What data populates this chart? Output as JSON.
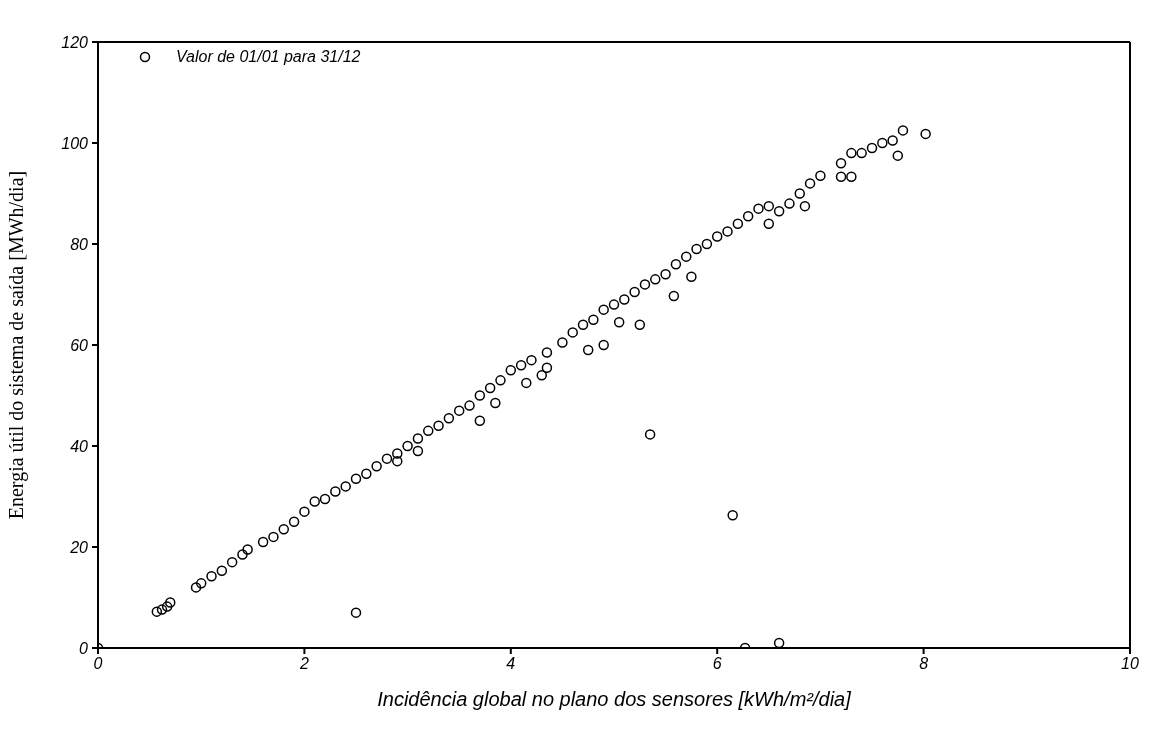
{
  "chart_data": {
    "type": "scatter",
    "xlabel": "Incidência global no plano dos sensores [kWh/m²/dia]",
    "ylabel": "Energia útil do sistema de saída [MWh/dia]",
    "xlim": [
      0,
      10
    ],
    "xticks": [
      0,
      2,
      4,
      6,
      8,
      10
    ],
    "ylim": [
      0,
      120
    ],
    "yticks": [
      0,
      20,
      40,
      60,
      80,
      100,
      120
    ],
    "grid": false,
    "legend": "top left",
    "marker": "circle",
    "series": [
      {
        "name": "Valor de 01/01 para 31/12",
        "color": "#000000",
        "x": [
          0,
          0.57,
          0.62,
          0.67,
          0.7,
          0.95,
          1.0,
          1.1,
          1.2,
          1.3,
          1.4,
          1.45,
          1.6,
          1.7,
          1.8,
          1.9,
          2.0,
          2.1,
          2.2,
          2.3,
          2.4,
          2.5,
          2.6,
          2.7,
          2.8,
          2.9,
          3.0,
          3.1,
          3.2,
          3.3,
          3.4,
          3.5,
          3.6,
          3.7,
          3.8,
          3.9,
          4.0,
          4.1,
          4.2,
          4.35,
          4.5,
          4.6,
          4.7,
          4.8,
          4.9,
          5.0,
          5.1,
          5.2,
          5.3,
          5.4,
          5.5,
          5.6,
          5.7,
          5.8,
          5.9,
          6.0,
          6.1,
          6.2,
          6.3,
          6.4,
          6.5,
          6.6,
          6.7,
          6.8,
          6.9,
          7.0,
          7.2,
          7.3,
          7.4,
          7.5,
          7.6,
          7.7,
          7.8,
          8.02,
          2.9,
          3.1,
          3.7,
          3.85,
          4.15,
          4.3,
          4.35,
          4.75,
          4.9,
          5.05,
          5.25,
          5.58,
          5.75,
          6.5,
          6.85,
          7.2,
          7.3,
          7.75,
          2.5,
          5.35,
          6.15,
          6.27,
          6.6
        ],
        "values": [
          0,
          7.2,
          7.6,
          8.2,
          9,
          12,
          12.8,
          14.2,
          15.3,
          17,
          18.5,
          19.5,
          21,
          22,
          23.5,
          25,
          27,
          29,
          29.5,
          31,
          32,
          33.5,
          34.5,
          36,
          37.5,
          38.5,
          40,
          41.5,
          43,
          44,
          45.5,
          47,
          48,
          50,
          51.5,
          53,
          55,
          56,
          57,
          58.5,
          60.5,
          62.5,
          64,
          65,
          67,
          68,
          69,
          70.5,
          72,
          73,
          74,
          76,
          77.5,
          79,
          80,
          81.5,
          82.5,
          84,
          85.5,
          87,
          87.5,
          86.5,
          88,
          90,
          92,
          93.5,
          96,
          98,
          98,
          99,
          100,
          100.5,
          102.5,
          101.8,
          37,
          39,
          45,
          48.5,
          52.5,
          54,
          55.5,
          59,
          60,
          64.5,
          64,
          69.7,
          73.5,
          84,
          87.5,
          93.3,
          93.3,
          97.5,
          7,
          42.3,
          26.3,
          0,
          1
        ]
      }
    ]
  }
}
